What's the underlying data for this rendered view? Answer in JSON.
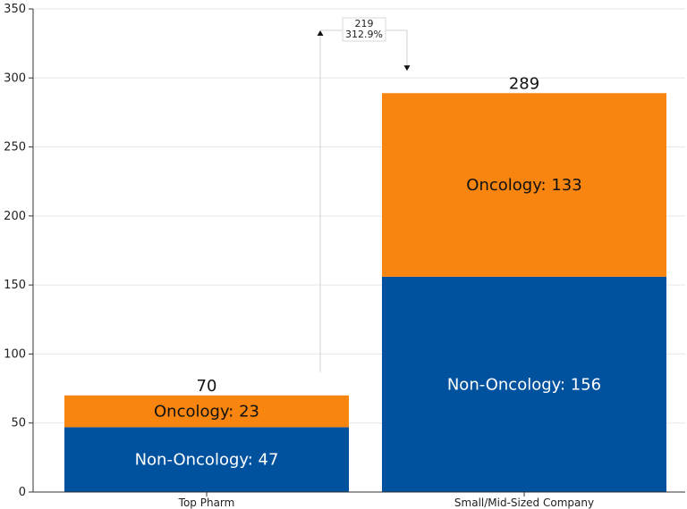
{
  "chart_data": {
    "type": "bar",
    "stacked": true,
    "categories": [
      "Top Pharm",
      "Small/Mid-Sized Company"
    ],
    "series": [
      {
        "name": "Non-Oncology",
        "values": [
          47,
          156
        ],
        "color": "#00529f"
      },
      {
        "name": "Oncology",
        "values": [
          23,
          133
        ],
        "color": "#f7850f"
      }
    ],
    "segment_labels": [
      [
        "Non-Oncology: 47",
        "Non-Oncology: 156"
      ],
      [
        "Oncology: 23",
        "Oncology: 133"
      ]
    ],
    "totals": [
      70,
      289
    ],
    "total_labels": [
      "70",
      "289"
    ],
    "difference": {
      "value_label": "219",
      "percent_label": "312.9%"
    },
    "yticks": [
      0,
      50,
      100,
      150,
      200,
      250,
      300,
      350
    ],
    "ytick_labels": [
      "0",
      "50",
      "100",
      "150",
      "200",
      "250",
      "300",
      "350"
    ],
    "ylim": [
      0,
      350
    ],
    "grid": true,
    "legend": "none",
    "title": "",
    "xlabel": "",
    "ylabel": ""
  }
}
